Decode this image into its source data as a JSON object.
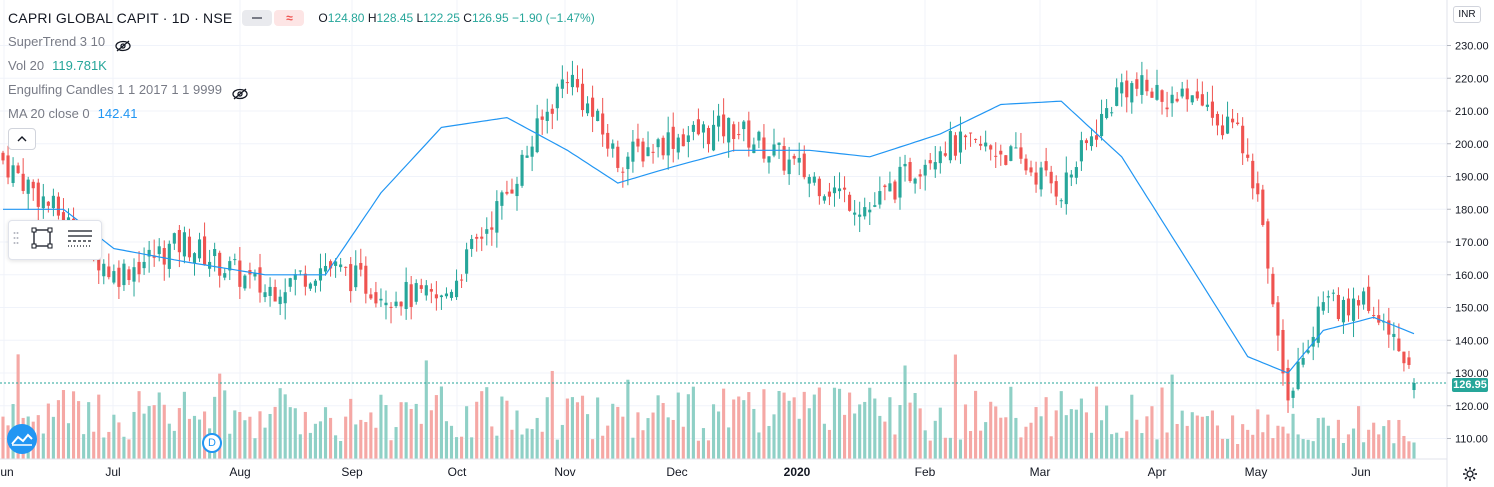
{
  "header": {
    "symbol": "CAPRI GLOBAL CAPIT · 1D · NSE",
    "ohlc": {
      "o_label": "O",
      "o": "124.80",
      "h_label": "H",
      "h": "128.45",
      "l_label": "L",
      "l": "122.25",
      "c_label": "C",
      "c": "126.95",
      "change": "−1.90 (−1.47%)"
    },
    "compare_icon": "equals-icon",
    "indicator_icon": "wave-icon"
  },
  "indicators": [
    {
      "name": "SuperTrend 3 10",
      "value": "",
      "hidden": true
    },
    {
      "name": "Vol 20",
      "value": "119.781K",
      "value_color": "#26a69a",
      "hidden": false
    },
    {
      "name": "Engulfing Candles 1 1 2017 1 1 9999",
      "value": "",
      "hidden": true
    },
    {
      "name": "MA 20 close 0",
      "value": "142.41",
      "value_color": "#2196f3",
      "hidden": false
    }
  ],
  "currency": "INR",
  "last_price": "126.95",
  "dividend_marker": "D",
  "colors": {
    "up": "#26a69a",
    "down": "#ef5350",
    "vol_up": "#8fd0c6",
    "vol_down": "#f5a8a5",
    "ma": "#2196f3",
    "grid": "#f0f3fa",
    "axis_text": "#131722"
  },
  "chart_data": {
    "type": "candlestick",
    "title": "CAPRI GLOBAL CAPIT · 1D · NSE",
    "y_axis": {
      "ticks": [
        "230.00",
        "220.00",
        "210.00",
        "200.00",
        "190.00",
        "180.00",
        "170.00",
        "160.00",
        "150.00",
        "140.00",
        "130.00",
        "120.00",
        "110.00"
      ],
      "range": [
        103,
        235
      ]
    },
    "x_axis": {
      "labels": [
        "Jun",
        "Jul",
        "Aug",
        "Sep",
        "Oct",
        "Nov",
        "Dec",
        "2020",
        "Feb",
        "Mar",
        "Apr",
        "May",
        "Jun"
      ]
    },
    "grid": true,
    "price_anchors": {
      "bar": [
        0,
        12,
        22,
        36,
        52,
        64,
        75,
        87,
        100,
        112,
        122,
        133,
        145,
        160,
        172,
        186,
        198,
        210,
        222,
        238,
        247,
        255,
        262,
        272,
        280
      ],
      "close": [
        195,
        177,
        160,
        170,
        155,
        163,
        155,
        152,
        185,
        222,
        195,
        202,
        205,
        190,
        180,
        200,
        198,
        186,
        218,
        212,
        200,
        125,
        150,
        152,
        127
      ]
    },
    "ma_anchors": {
      "bar": [
        0,
        12,
        22,
        36,
        52,
        64,
        75,
        87,
        100,
        112,
        122,
        133,
        145,
        160,
        172,
        186,
        198,
        210,
        222,
        238,
        247,
        255,
        262,
        272,
        280
      ],
      "value": [
        180,
        180,
        168,
        164,
        160,
        160,
        185,
        205,
        208,
        198,
        188,
        193,
        198,
        198,
        196,
        203,
        212,
        213,
        196,
        157,
        135,
        130,
        143,
        147,
        142
      ]
    },
    "ma_name": "MA 20 close 0",
    "volume_name": "Vol 20",
    "bar_count": 281
  }
}
